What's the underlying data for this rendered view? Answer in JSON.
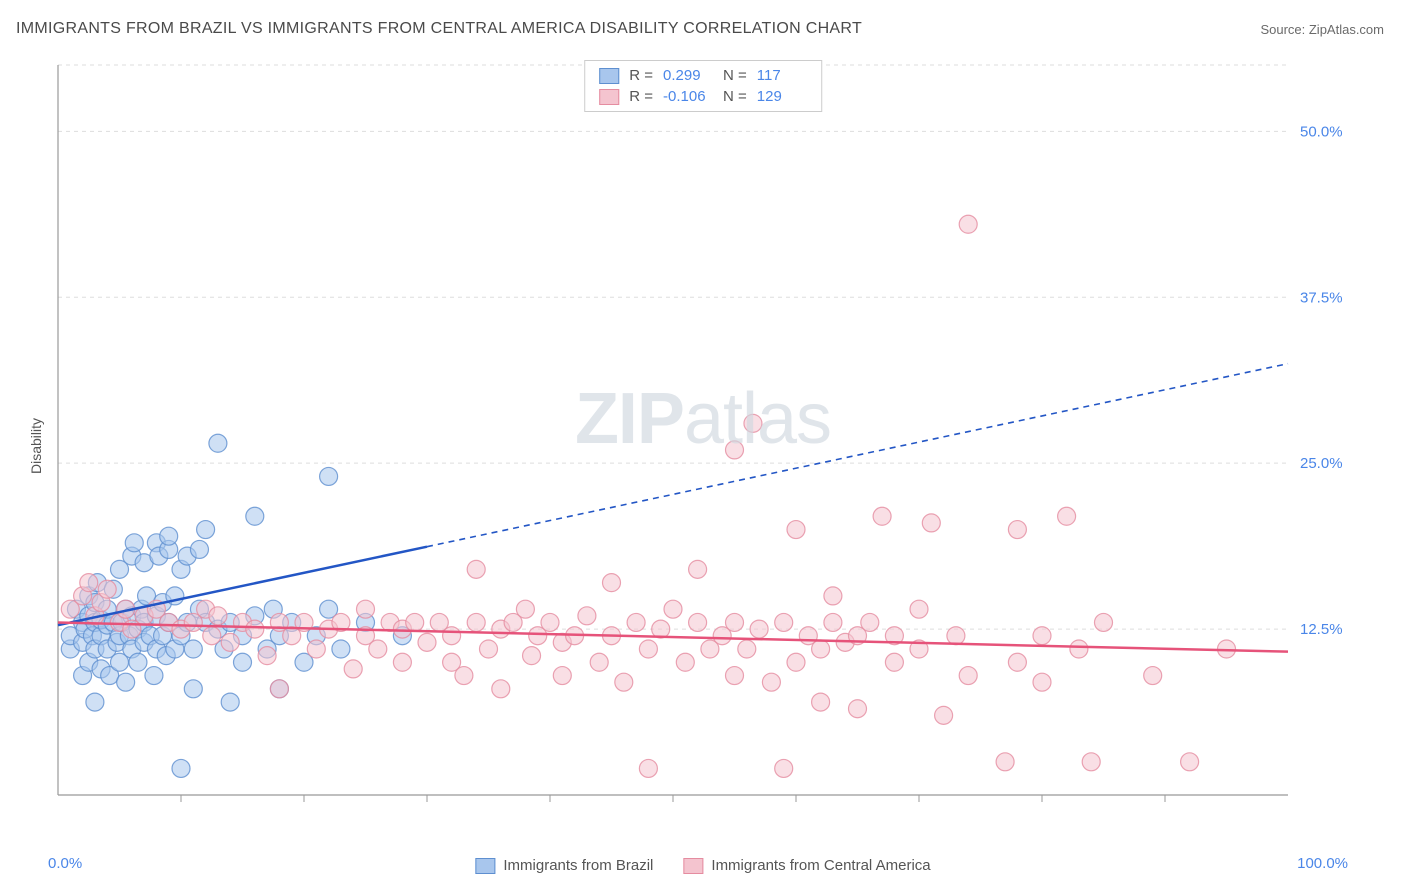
{
  "title": "IMMIGRANTS FROM BRAZIL VS IMMIGRANTS FROM CENTRAL AMERICA DISABILITY CORRELATION CHART",
  "source_prefix": "Source: ",
  "source_name": "ZipAtlas.com",
  "ylabel": "Disability",
  "watermark_bold": "ZIP",
  "watermark_light": "atlas",
  "chart": {
    "type": "scatter",
    "background_color": "#ffffff",
    "grid_color": "#dddddd",
    "axis_color": "#999999",
    "xlim": [
      0,
      100
    ],
    "ylim": [
      0,
      55
    ],
    "y_ticks": [
      12.5,
      25.0,
      37.5,
      50.0
    ],
    "y_tick_labels": [
      "12.5%",
      "25.0%",
      "37.5%",
      "50.0%"
    ],
    "x_corner_labels": [
      "0.0%",
      "100.0%"
    ],
    "x_tick_positions": [
      10,
      20,
      30,
      40,
      50,
      60,
      70,
      80,
      90
    ],
    "tick_label_color": "#4a86e8",
    "tick_label_fontsize": 15,
    "marker_radius": 9,
    "marker_opacity": 0.55,
    "series": [
      {
        "name": "Immigrants from Brazil",
        "color_fill": "#a8c6ed",
        "color_stroke": "#5e8fd0",
        "line_color": "#2356c5",
        "R": "0.299",
        "N": "117",
        "trend": {
          "x1": 0,
          "y1": 12.8,
          "x2": 100,
          "y2": 32.5,
          "solid_until_x": 30
        },
        "points": [
          [
            1,
            11
          ],
          [
            1,
            12
          ],
          [
            1.5,
            14
          ],
          [
            2,
            13
          ],
          [
            2,
            9
          ],
          [
            2,
            11.5
          ],
          [
            2.2,
            12.5
          ],
          [
            2.5,
            10
          ],
          [
            2.5,
            13.5
          ],
          [
            2.5,
            15
          ],
          [
            2.8,
            12
          ],
          [
            3,
            7
          ],
          [
            3,
            11
          ],
          [
            3,
            13
          ],
          [
            3,
            14.5
          ],
          [
            3.2,
            16
          ],
          [
            3.5,
            12
          ],
          [
            3.5,
            9.5
          ],
          [
            3.5,
            13.2
          ],
          [
            4,
            11
          ],
          [
            4,
            12.8
          ],
          [
            4,
            14
          ],
          [
            4.2,
            9
          ],
          [
            4.5,
            13
          ],
          [
            4.5,
            15.5
          ],
          [
            4.8,
            11.5
          ],
          [
            5,
            10
          ],
          [
            5,
            12
          ],
          [
            5,
            17
          ],
          [
            5.2,
            13
          ],
          [
            5.5,
            8.5
          ],
          [
            5.5,
            14
          ],
          [
            5.8,
            12
          ],
          [
            6,
            11
          ],
          [
            6,
            13.5
          ],
          [
            6,
            18
          ],
          [
            6.2,
            19
          ],
          [
            6.5,
            10
          ],
          [
            6.5,
            12.5
          ],
          [
            6.8,
            14
          ],
          [
            7,
            11.5
          ],
          [
            7,
            13
          ],
          [
            7,
            17.5
          ],
          [
            7.2,
            15
          ],
          [
            7.5,
            12
          ],
          [
            7.8,
            9
          ],
          [
            8,
            11
          ],
          [
            8,
            13.5
          ],
          [
            8,
            19
          ],
          [
            8.2,
            18
          ],
          [
            8.5,
            12
          ],
          [
            8.5,
            14.5
          ],
          [
            8.8,
            10.5
          ],
          [
            9,
            13
          ],
          [
            9,
            18.5
          ],
          [
            9,
            19.5
          ],
          [
            9.5,
            11
          ],
          [
            9.5,
            15
          ],
          [
            10,
            12
          ],
          [
            10,
            17
          ],
          [
            10,
            2
          ],
          [
            10.5,
            13
          ],
          [
            10.5,
            18
          ],
          [
            11,
            11
          ],
          [
            11,
            8
          ],
          [
            11.5,
            14
          ],
          [
            11.5,
            18.5
          ],
          [
            12,
            13
          ],
          [
            12,
            20
          ],
          [
            13,
            12.5
          ],
          [
            13,
            26.5
          ],
          [
            13.5,
            11
          ],
          [
            14,
            13
          ],
          [
            14,
            7
          ],
          [
            15,
            12
          ],
          [
            15,
            10
          ],
          [
            16,
            13.5
          ],
          [
            16,
            21
          ],
          [
            17,
            11
          ],
          [
            17.5,
            14
          ],
          [
            18,
            12
          ],
          [
            18,
            8
          ],
          [
            19,
            13
          ],
          [
            20,
            10
          ],
          [
            21,
            12
          ],
          [
            22,
            14
          ],
          [
            22,
            24
          ],
          [
            23,
            11
          ],
          [
            25,
            13
          ],
          [
            28,
            12
          ]
        ]
      },
      {
        "name": "Immigrants from Central America",
        "color_fill": "#f4c4cf",
        "color_stroke": "#e58ca0",
        "line_color": "#e6537a",
        "R": "-0.106",
        "N": "129",
        "trend": {
          "x1": 0,
          "y1": 13.0,
          "x2": 100,
          "y2": 10.8,
          "solid_until_x": 100
        },
        "points": [
          [
            1,
            14
          ],
          [
            2,
            15
          ],
          [
            2.5,
            16
          ],
          [
            3,
            13.5
          ],
          [
            3.5,
            14.5
          ],
          [
            4,
            15.5
          ],
          [
            5,
            13
          ],
          [
            5.5,
            14
          ],
          [
            6,
            12.5
          ],
          [
            7,
            13.5
          ],
          [
            8,
            14
          ],
          [
            9,
            13
          ],
          [
            10,
            12.5
          ],
          [
            11,
            13
          ],
          [
            12,
            14
          ],
          [
            12.5,
            12
          ],
          [
            13,
            13.5
          ],
          [
            14,
            11.5
          ],
          [
            15,
            13
          ],
          [
            16,
            12.5
          ],
          [
            17,
            10.5
          ],
          [
            18,
            13
          ],
          [
            18,
            8
          ],
          [
            19,
            12
          ],
          [
            20,
            13
          ],
          [
            21,
            11
          ],
          [
            22,
            12.5
          ],
          [
            23,
            13
          ],
          [
            24,
            9.5
          ],
          [
            25,
            12
          ],
          [
            25,
            14
          ],
          [
            26,
            11
          ],
          [
            27,
            13
          ],
          [
            28,
            10
          ],
          [
            28,
            12.5
          ],
          [
            29,
            13
          ],
          [
            30,
            11.5
          ],
          [
            31,
            13
          ],
          [
            32,
            10
          ],
          [
            32,
            12
          ],
          [
            33,
            9
          ],
          [
            34,
            13
          ],
          [
            34,
            17
          ],
          [
            35,
            11
          ],
          [
            36,
            12.5
          ],
          [
            36,
            8
          ],
          [
            37,
            13
          ],
          [
            38,
            14
          ],
          [
            38.5,
            10.5
          ],
          [
            39,
            12
          ],
          [
            40,
            13
          ],
          [
            41,
            9
          ],
          [
            41,
            11.5
          ],
          [
            42,
            12
          ],
          [
            43,
            13.5
          ],
          [
            44,
            10
          ],
          [
            45,
            16
          ],
          [
            45,
            12
          ],
          [
            46,
            8.5
          ],
          [
            47,
            13
          ],
          [
            48,
            2
          ],
          [
            48,
            11
          ],
          [
            49,
            12.5
          ],
          [
            50,
            14
          ],
          [
            51,
            10
          ],
          [
            52,
            13
          ],
          [
            52,
            17
          ],
          [
            53,
            11
          ],
          [
            54,
            12
          ],
          [
            55,
            13
          ],
          [
            55,
            26
          ],
          [
            55,
            9
          ],
          [
            56,
            11
          ],
          [
            56.5,
            28
          ],
          [
            57,
            12.5
          ],
          [
            58,
            8.5
          ],
          [
            59,
            13
          ],
          [
            59,
            2
          ],
          [
            60,
            10
          ],
          [
            60,
            20
          ],
          [
            61,
            12
          ],
          [
            62,
            7
          ],
          [
            62,
            11
          ],
          [
            63,
            13
          ],
          [
            63,
            15
          ],
          [
            64,
            11.5
          ],
          [
            65,
            6.5
          ],
          [
            65,
            12
          ],
          [
            66,
            13
          ],
          [
            67,
            21
          ],
          [
            68,
            10
          ],
          [
            68,
            12
          ],
          [
            70,
            14
          ],
          [
            70,
            11
          ],
          [
            71,
            20.5
          ],
          [
            72,
            6
          ],
          [
            73,
            12
          ],
          [
            74,
            9
          ],
          [
            74,
            43
          ],
          [
            77,
            2.5
          ],
          [
            78,
            10
          ],
          [
            78,
            20
          ],
          [
            80,
            8.5
          ],
          [
            80,
            12
          ],
          [
            82,
            21
          ],
          [
            83,
            11
          ],
          [
            84,
            2.5
          ],
          [
            85,
            13
          ],
          [
            89,
            9
          ],
          [
            92,
            2.5
          ],
          [
            95,
            11
          ]
        ]
      }
    ]
  },
  "legend_bottom": [
    {
      "label": "Immigrants from Brazil",
      "fill": "#a8c6ed",
      "stroke": "#5e8fd0"
    },
    {
      "label": "Immigrants from Central America",
      "fill": "#f4c4cf",
      "stroke": "#e58ca0"
    }
  ]
}
